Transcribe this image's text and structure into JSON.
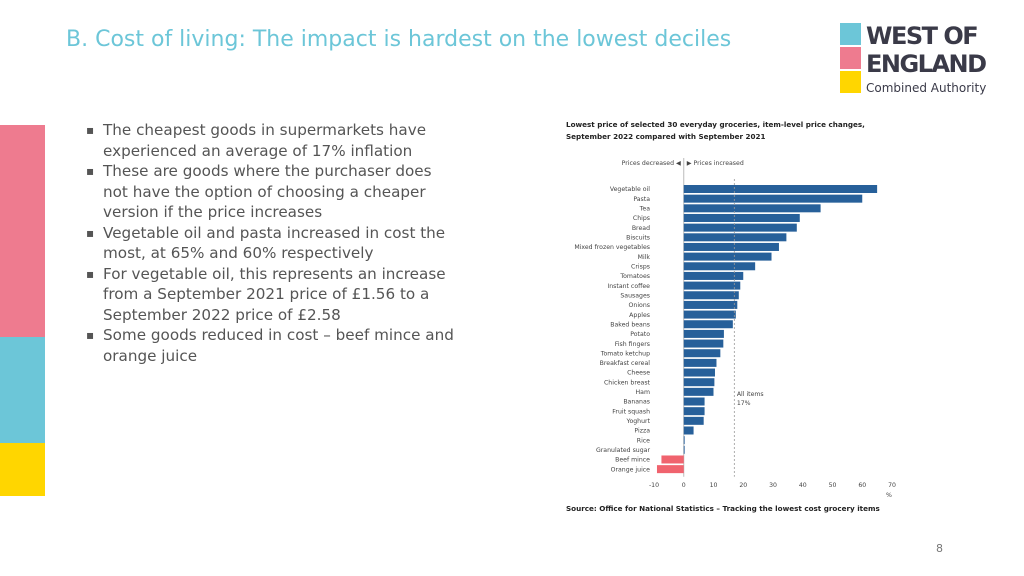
{
  "slide": {
    "title": "B. Cost of living: The impact is hardest on the lowest deciles",
    "page_number": "8"
  },
  "logo": {
    "line1": "WEST OF",
    "line2": "ENGLAND",
    "line3": "Combined Authority",
    "colors": [
      "#6cc6d8",
      "#ee7b8f",
      "#ffd600"
    ]
  },
  "side_strips": [
    "#ee7b8f",
    "#6cc6d8",
    "#ffd600"
  ],
  "bullets": [
    "The cheapest goods in supermarkets have experienced an average of 17% inflation",
    "These are goods where the purchaser does not have the option of choosing a cheaper version if the price increases",
    "Vegetable oil and pasta increased in cost the most, at 65% and 60% respectively",
    "For vegetable oil, this represents an increase from a September 2021 price of £1.56 to a September 2022 price of £2.58",
    "Some goods reduced in cost – beef mince and orange juice"
  ],
  "chart_data": {
    "type": "bar",
    "orientation": "horizontal",
    "title": "Lowest price of selected 30 everyday groceries, item-level price changes, September 2022 compared with September 2021",
    "direction_label_left": "Prices decreased ◀",
    "direction_label_right": "▶ Prices increased",
    "categories": [
      "Vegetable oil",
      "Pasta",
      "Tea",
      "Chips",
      "Bread",
      "Biscuits",
      "Mixed frozen vegetables",
      "Milk",
      "Crisps",
      "Tomatoes",
      "Instant coffee",
      "Sausages",
      "Onions",
      "Apples",
      "Baked beans",
      "Potato",
      "Fish fingers",
      "Tomato ketchup",
      "Breakfast cereal",
      "Cheese",
      "Chicken breast",
      "Ham",
      "Bananas",
      "Fruit squash",
      "Yoghurt",
      "Pizza",
      "Rice",
      "Granulated sugar",
      "Beef mince",
      "Orange juice"
    ],
    "values": [
      65,
      60,
      46,
      39,
      38,
      34.5,
      32,
      29.5,
      24,
      20,
      19,
      18.5,
      18,
      17.5,
      16.5,
      13.5,
      13.3,
      12.3,
      11,
      10.5,
      10.3,
      10,
      7,
      7,
      6.7,
      3.3,
      0.3,
      0.3,
      -7.5,
      -9
    ],
    "positive_color": "#27609a",
    "negative_color": "#f0636e",
    "xlim": [
      -10,
      70
    ],
    "xticks": [
      -10,
      0,
      10,
      20,
      30,
      40,
      50,
      60,
      70
    ],
    "xunit": "%",
    "reference_line": {
      "value": 17,
      "label_1": "All items",
      "label_2": "17%"
    },
    "source": "Source: Office for National Statistics – Tracking the lowest cost grocery items"
  }
}
